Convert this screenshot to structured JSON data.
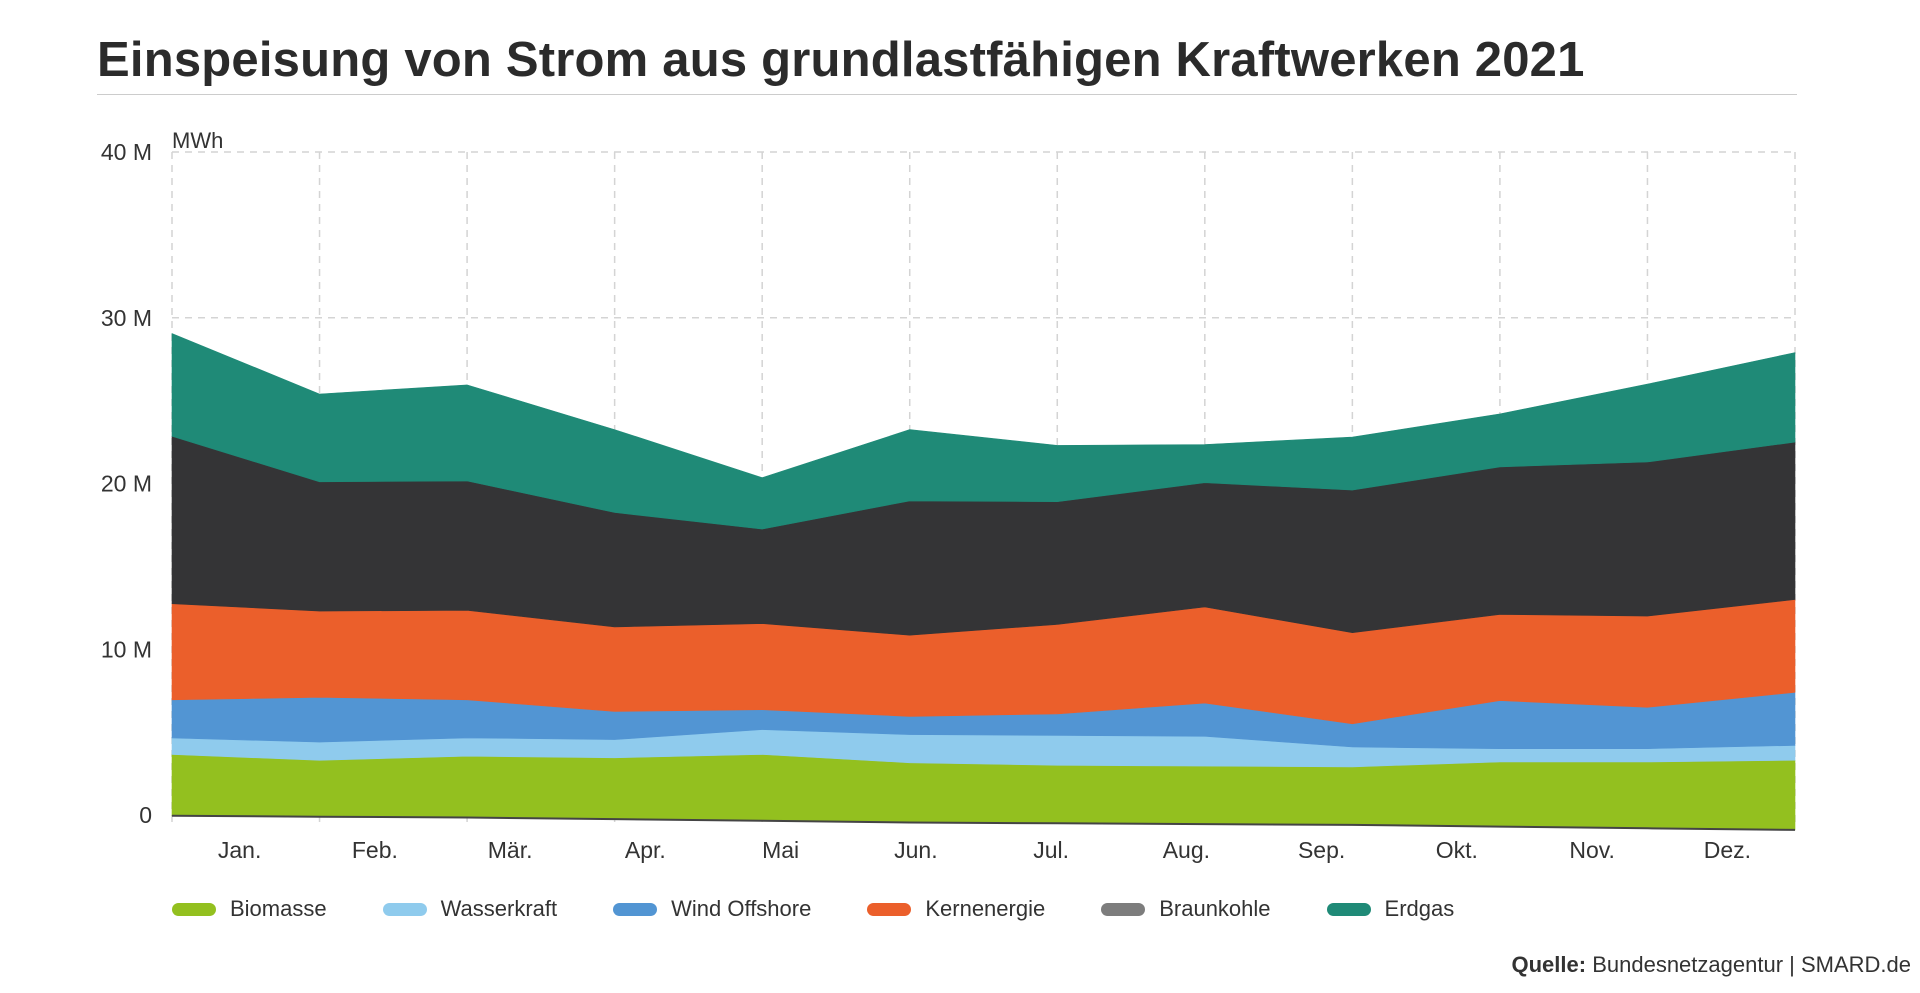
{
  "chart_data": {
    "type": "area",
    "stacked": true,
    "title": "Einspeisung von Strom aus grundlastfähigen Kraftwerken 2021",
    "ylabel": "MWh",
    "xlabel": "",
    "ylim": [
      0,
      40
    ],
    "yticks": [
      {
        "value": 0,
        "label": "0"
      },
      {
        "value": 10,
        "label": "10 M"
      },
      {
        "value": 20,
        "label": "20 M"
      },
      {
        "value": 30,
        "label": "30 M"
      },
      {
        "value": 40,
        "label": "40 M"
      }
    ],
    "categories": [
      "Jan.",
      "Feb.",
      "Mär.",
      "Apr.",
      "Mai",
      "Jun.",
      "Jul.",
      "Aug.",
      "Sep.",
      "Okt.",
      "Nov.",
      "Dez."
    ],
    "grid": true,
    "legend_position": "bottom",
    "baseline": [
      -0.05,
      -0.1,
      -0.15,
      -0.25,
      -0.35,
      -0.45,
      -0.5,
      -0.55,
      -0.6,
      -0.7,
      -0.8,
      -0.9
    ],
    "series": [
      {
        "name": "Biomasse",
        "color": "#93c01f",
        "values": [
          3.7,
          3.4,
          3.7,
          3.7,
          4.0,
          3.6,
          3.5,
          3.5,
          3.5,
          3.9,
          4.0,
          4.2
        ]
      },
      {
        "name": "Wasserkraft",
        "color": "#8fcbed",
        "values": [
          1.0,
          1.1,
          1.1,
          1.1,
          1.5,
          1.7,
          1.8,
          1.8,
          1.2,
          0.8,
          0.8,
          0.9
        ]
      },
      {
        "name": "Wind Offshore",
        "color": "#5295d3",
        "values": [
          2.3,
          2.7,
          2.3,
          1.7,
          1.2,
          1.1,
          1.3,
          2.0,
          1.4,
          2.9,
          2.5,
          3.2
        ]
      },
      {
        "name": "Kernenergie",
        "color": "#eb5f2b",
        "values": [
          5.8,
          5.2,
          5.4,
          5.1,
          5.2,
          4.9,
          5.4,
          5.8,
          5.5,
          5.2,
          5.5,
          5.6
        ]
      },
      {
        "name": "Braunkohle",
        "color": "#343436",
        "values": [
          10.1,
          7.8,
          7.8,
          6.9,
          5.7,
          8.1,
          7.4,
          7.5,
          8.6,
          8.9,
          9.3,
          9.5
        ]
      },
      {
        "name": "Erdgas",
        "color": "#1f8a77",
        "values": [
          6.2,
          5.3,
          5.8,
          5.0,
          3.1,
          4.3,
          3.4,
          2.3,
          3.2,
          3.2,
          4.7,
          5.4
        ]
      }
    ]
  },
  "legend_colors": {
    "Biomasse": "#93c01f",
    "Wasserkraft": "#8fcbed",
    "Wind Offshore": "#5295d3",
    "Kernenergie": "#eb5f2b",
    "Braunkohle": "#7d7d7d",
    "Erdgas": "#1f8a77"
  },
  "source": {
    "label": "Quelle:",
    "text": "Bundesnetzagentur | SMARD.de"
  }
}
